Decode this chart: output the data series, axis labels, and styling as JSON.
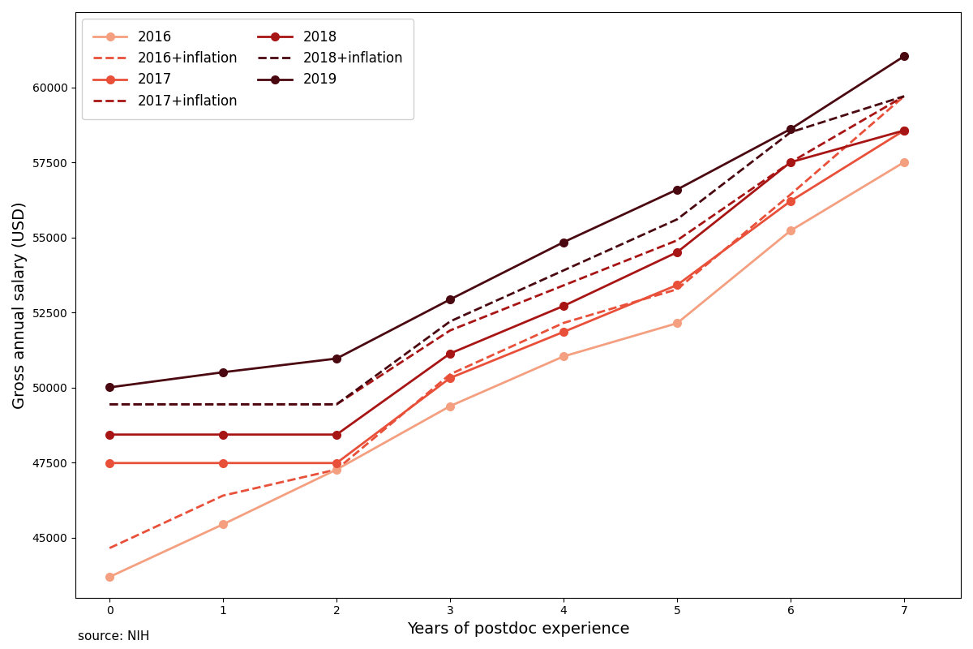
{
  "years_of_experience": [
    0,
    1,
    2,
    3,
    4,
    5,
    6,
    7
  ],
  "stipends": {
    "2016": [
      43692,
      45444,
      47268,
      49380,
      51036,
      52140,
      55224,
      57504
    ],
    "2017": [
      47484,
      47484,
      47484,
      50316,
      51852,
      53412,
      56208,
      58560
    ],
    "2018": [
      48432,
      48432,
      48432,
      51132,
      52716,
      54504,
      57504,
      58560
    ],
    "2019": [
      50004,
      50508,
      50964,
      52932,
      54840,
      56592,
      58608,
      61032
    ]
  },
  "inflation": {
    "2016": [
      44652,
      46400,
      47268,
      50440,
      52150,
      53270,
      56430,
      59700
    ],
    "2017": [
      49440,
      49440,
      49440,
      51900,
      53400,
      54900,
      57500,
      59700
    ],
    "2018": [
      49440,
      49440,
      49440,
      52200,
      53900,
      55600,
      58500,
      59700
    ]
  },
  "colors": {
    "2016": "#F4A080",
    "2017": "#E8503A",
    "2018": "#A81515",
    "2019": "#4A0810"
  },
  "inflation_colors": {
    "2016": "#E8503A",
    "2017": "#A81515",
    "2018": "#4A0810"
  },
  "ylabel": "Gross annual salary (USD)",
  "xlabel": "Years of postdoc experience",
  "source": "source: NIH",
  "ylim": [
    43000,
    62500
  ],
  "xlim": [
    -0.3,
    7.5
  ],
  "yticks": [
    45000,
    47500,
    50000,
    52500,
    55000,
    57500,
    60000
  ],
  "xticks": [
    0,
    1,
    2,
    3,
    4,
    5,
    6,
    7
  ]
}
